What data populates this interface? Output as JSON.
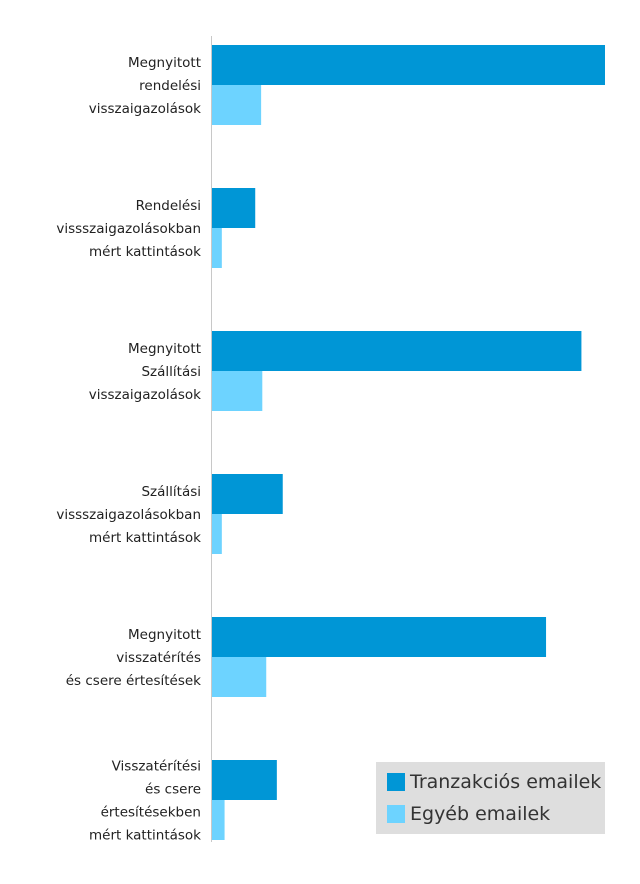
{
  "chart_data": {
    "type": "bar",
    "orientation": "horizontal",
    "categories": [
      [
        "Megnyitott",
        "rendelési",
        "visszaigazolások"
      ],
      [
        "Rendelési",
        "vissszaigazolásokban",
        "mért kattintások"
      ],
      [
        "Megnyitott",
        "Szállítási",
        "visszaigazolások"
      ],
      [
        "Szállítási",
        "vissszaigazolásokban",
        "mért kattintások"
      ],
      [
        "Megnyitott",
        "visszatérítés",
        "és csere értesítések"
      ],
      [
        "Visszatérítési",
        "és csere",
        "értesítésekben",
        "mért kattintások"
      ]
    ],
    "series": [
      {
        "name": "Tranzakciós emailek",
        "color": "#0096d6",
        "values": [
          100,
          11,
          94,
          18,
          85,
          16.5
        ]
      },
      {
        "name": "Egyéb emailek",
        "color": "#6dd3ff",
        "values": [
          12.5,
          2.5,
          12.8,
          2.5,
          13.8,
          3.2
        ]
      }
    ],
    "xlim": [
      0,
      100
    ],
    "grid": false,
    "legend_position": "bottom-right",
    "legend_background": "#dedede",
    "axis_color": "#c8c8c8"
  }
}
